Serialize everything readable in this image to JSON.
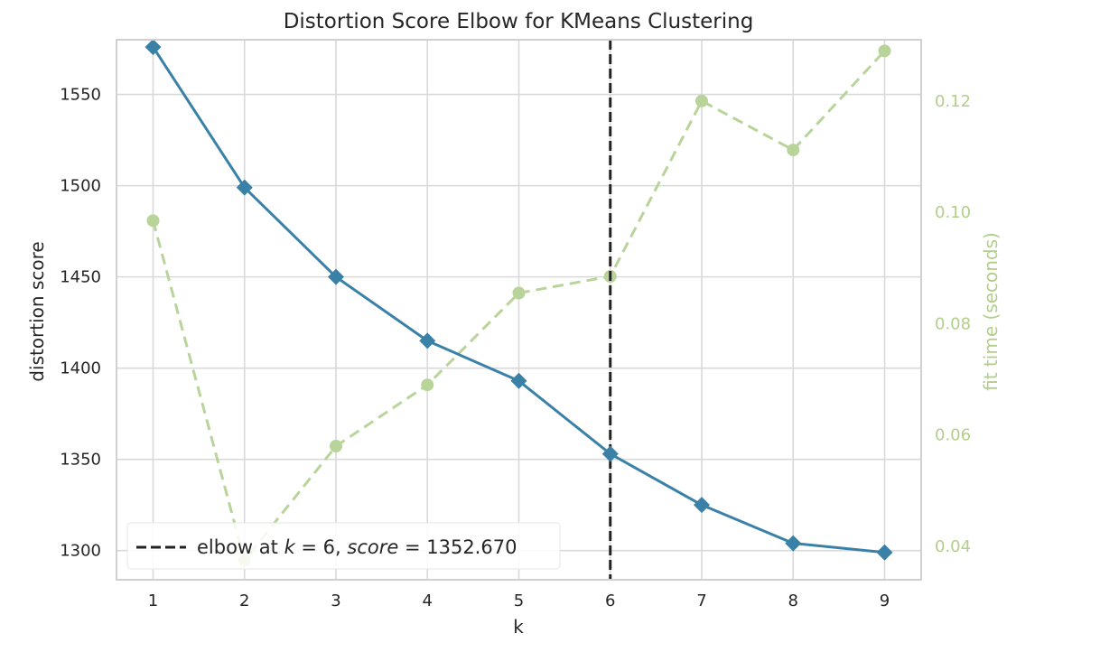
{
  "chart_data": {
    "type": "line",
    "title": "Distortion Score Elbow for KMeans Clustering",
    "xlabel": "k",
    "ylabel": "distortion score",
    "y2label": "fit time (seconds)",
    "x": [
      1,
      2,
      3,
      4,
      5,
      6,
      7,
      8,
      9
    ],
    "xlim": [
      0.6,
      9.4
    ],
    "ylim": [
      1284,
      1580
    ],
    "y2lim": [
      0.034,
      0.131
    ],
    "x_ticks": [
      "1",
      "2",
      "3",
      "4",
      "5",
      "6",
      "7",
      "8",
      "9"
    ],
    "y_ticks": [
      1300,
      1350,
      1400,
      1450,
      1500,
      1550
    ],
    "y_tick_labels": [
      "1300",
      "1350",
      "1400",
      "1450",
      "1500",
      "1550"
    ],
    "y2_ticks": [
      0.04,
      0.06,
      0.08,
      0.1,
      0.12
    ],
    "y2_tick_labels": [
      "0.04",
      "0.06",
      "0.08",
      "0.10",
      "0.12"
    ],
    "grid": true,
    "series": [
      {
        "role": "distortion",
        "axis": "left",
        "color": "#3a81a8",
        "marker": "diamond",
        "line": "solid",
        "values": [
          1576,
          1499,
          1450,
          1415,
          1393,
          1353,
          1325,
          1304,
          1299
        ]
      },
      {
        "role": "fit_time",
        "axis": "right",
        "color": "#b9d49a",
        "marker": "circle",
        "line": "dashed",
        "values": [
          0.0985,
          0.0375,
          0.058,
          0.069,
          0.0855,
          0.0885,
          0.12,
          0.1112,
          0.129
        ]
      }
    ],
    "elbow": {
      "k": 6,
      "color": "#222222",
      "legend_prefix": "elbow at ",
      "legend_k_symbol": "k",
      "legend_k_value": " = 6, ",
      "legend_score_symbol": "score",
      "legend_score_value": " = 1352.670"
    },
    "legend_position": "bottom-left"
  }
}
